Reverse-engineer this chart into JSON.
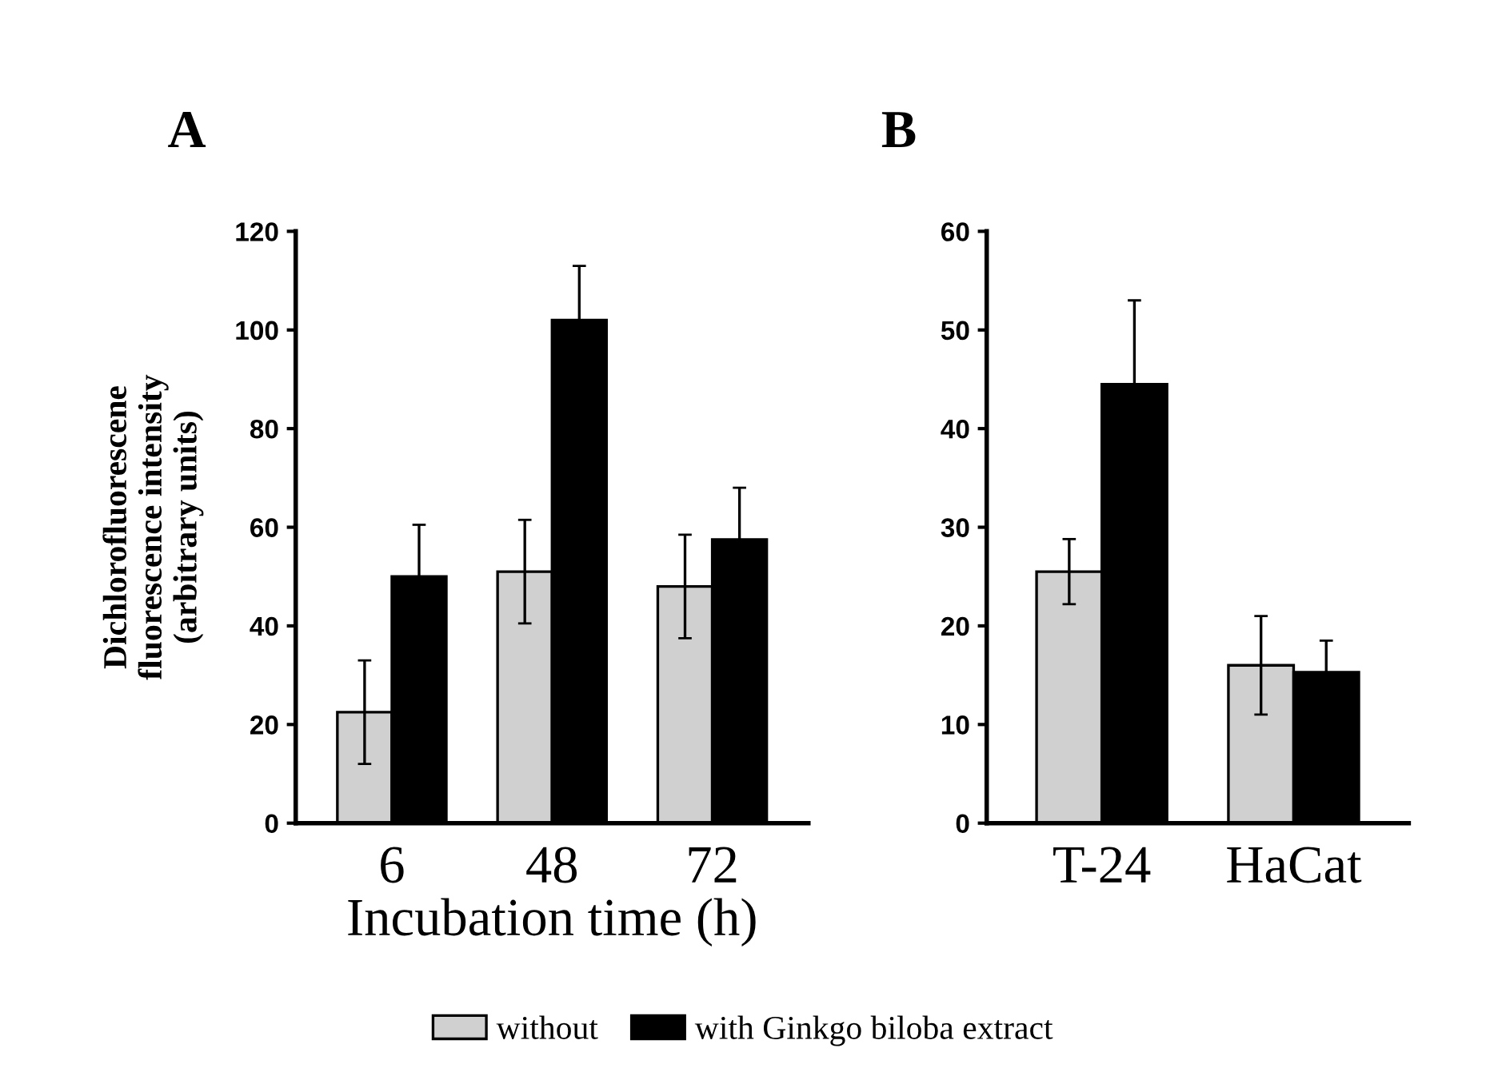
{
  "chart_data": [
    {
      "type": "bar",
      "title": "A",
      "xlabel": "Incubation time (h)",
      "ylabel": "Dichlorofluorescene\nfluorescence intensity\n(arbitrary units)",
      "categories": [
        "6",
        "48",
        "72"
      ],
      "ylim": [
        0,
        120
      ],
      "yticks": [
        0,
        20,
        40,
        60,
        80,
        100,
        120
      ],
      "grid": false,
      "legend": "bottom",
      "series": [
        {
          "name": "without",
          "color": "#d0d0d0",
          "values": [
            22.5,
            51,
            48
          ],
          "errors": [
            10.5,
            10.5,
            10.5
          ]
        },
        {
          "name": "with Ginkgo biloba extract",
          "color": "#000000",
          "values": [
            50,
            102,
            57.5
          ],
          "errors": [
            10.5,
            11,
            10.5
          ]
        }
      ]
    },
    {
      "type": "bar",
      "title": "B",
      "categories": [
        "T-24",
        "HaCat"
      ],
      "ylim": [
        0,
        60
      ],
      "yticks": [
        0,
        10,
        20,
        30,
        40,
        50,
        60
      ],
      "grid": false,
      "series": [
        {
          "color": "#d0d0d0",
          "values": [
            25.5,
            16
          ],
          "errors": [
            3.3,
            5
          ]
        },
        {
          "color": "#000000",
          "values": [
            44.5,
            15.3
          ],
          "errors": [
            8.5,
            3.2
          ]
        }
      ]
    }
  ]
}
